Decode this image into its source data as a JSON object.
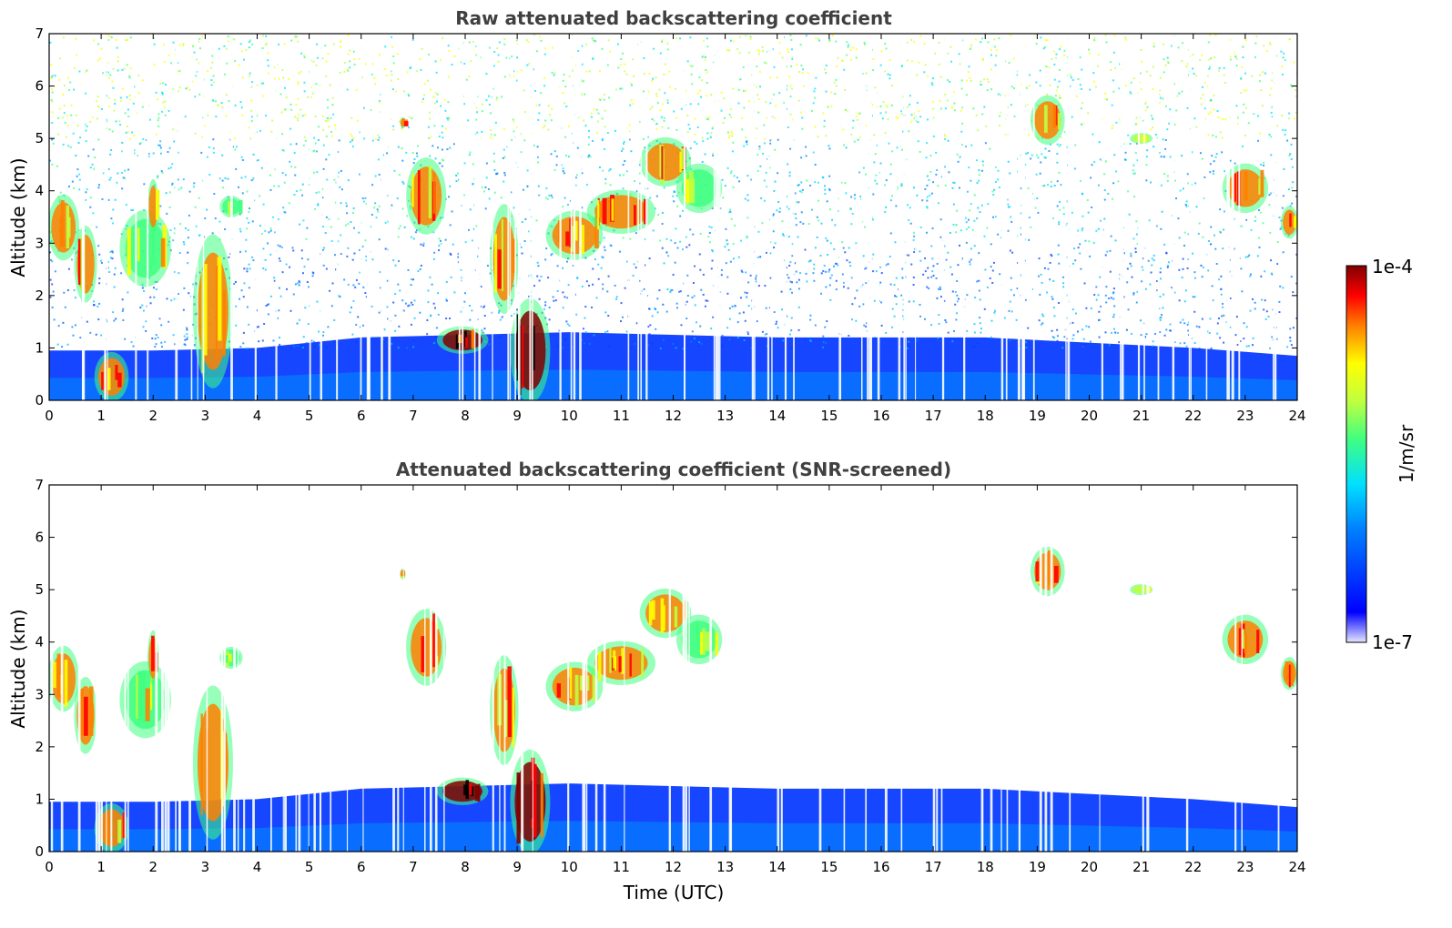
{
  "chart_data": [
    {
      "type": "heatmap",
      "title": "Raw attenuated backscattering coefficient",
      "xlabel": "",
      "ylabel": "Altitude (km)",
      "xlim": [
        0,
        24
      ],
      "ylim": [
        0,
        7
      ],
      "x_ticks": [
        "0",
        "1",
        "2",
        "3",
        "4",
        "5",
        "6",
        "7",
        "8",
        "9",
        "10",
        "11",
        "12",
        "13",
        "14",
        "15",
        "16",
        "17",
        "18",
        "19",
        "20",
        "21",
        "22",
        "23",
        "24"
      ],
      "y_ticks": [
        "0",
        "1",
        "2",
        "3",
        "4",
        "5",
        "6",
        "7"
      ],
      "noise": "everywhere above boundary layer (raw, unscreened)",
      "boundary_layer": [
        {
          "t": 0,
          "top": 0.95
        },
        {
          "t": 2,
          "top": 0.95
        },
        {
          "t": 4,
          "top": 1.0
        },
        {
          "t": 6,
          "top": 1.2
        },
        {
          "t": 10,
          "top": 1.3
        },
        {
          "t": 14,
          "top": 1.2
        },
        {
          "t": 18,
          "top": 1.2
        },
        {
          "t": 22,
          "top": 1.0
        },
        {
          "t": 24,
          "top": 0.85
        }
      ],
      "features": [
        {
          "t0": 0.0,
          "t1": 0.55,
          "z0": 2.7,
          "z1": 3.9,
          "level": "strong"
        },
        {
          "t0": 0.5,
          "t1": 0.9,
          "z0": 1.9,
          "z1": 3.3,
          "level": "strong"
        },
        {
          "t0": 0.9,
          "t1": 1.5,
          "z0": 0.0,
          "z1": 0.9,
          "level": "strong"
        },
        {
          "t0": 1.4,
          "t1": 2.3,
          "z0": 2.2,
          "z1": 3.6,
          "level": "moderate"
        },
        {
          "t0": 1.9,
          "t1": 2.1,
          "z0": 3.2,
          "z1": 4.2,
          "level": "strong"
        },
        {
          "t0": 2.8,
          "t1": 3.5,
          "z0": 0.3,
          "z1": 3.1,
          "level": "strong"
        },
        {
          "t0": 3.3,
          "t1": 3.7,
          "z0": 3.5,
          "z1": 3.9,
          "level": "moderate"
        },
        {
          "t0": 6.75,
          "t1": 6.85,
          "z0": 5.2,
          "z1": 5.4,
          "level": "strong"
        },
        {
          "t0": 6.9,
          "t1": 7.6,
          "z0": 3.2,
          "z1": 4.6,
          "level": "strong"
        },
        {
          "t0": 7.5,
          "t1": 8.4,
          "z0": 0.9,
          "z1": 1.4,
          "level": "very_strong"
        },
        {
          "t0": 8.5,
          "t1": 9.0,
          "z0": 1.7,
          "z1": 3.7,
          "level": "strong"
        },
        {
          "t0": 8.9,
          "t1": 9.6,
          "z0": 0.0,
          "z1": 1.9,
          "level": "very_strong"
        },
        {
          "t0": 9.6,
          "t1": 10.6,
          "z0": 2.7,
          "z1": 3.6,
          "level": "strong"
        },
        {
          "t0": 10.4,
          "t1": 11.6,
          "z0": 3.2,
          "z1": 4.0,
          "level": "strong"
        },
        {
          "t0": 11.4,
          "t1": 12.3,
          "z0": 4.1,
          "z1": 5.0,
          "level": "strong"
        },
        {
          "t0": 12.1,
          "t1": 12.9,
          "z0": 3.6,
          "z1": 4.5,
          "level": "moderate"
        },
        {
          "t0": 18.9,
          "t1": 19.5,
          "z0": 4.9,
          "z1": 5.8,
          "level": "strong"
        },
        {
          "t0": 20.8,
          "t1": 21.2,
          "z0": 4.9,
          "z1": 5.1,
          "level": "weak"
        },
        {
          "t0": 22.6,
          "t1": 23.4,
          "z0": 3.6,
          "z1": 4.5,
          "level": "strong"
        },
        {
          "t0": 23.7,
          "t1": 24.0,
          "z0": 3.1,
          "z1": 3.7,
          "level": "strong"
        }
      ]
    },
    {
      "type": "heatmap",
      "title": "Attenuated backscattering coefficient (SNR-screened)",
      "xlabel": "Time (UTC)",
      "ylabel": "Altitude (km)",
      "xlim": [
        0,
        24
      ],
      "ylim": [
        0,
        7
      ],
      "x_ticks": [
        "0",
        "1",
        "2",
        "3",
        "4",
        "5",
        "6",
        "7",
        "8",
        "9",
        "10",
        "11",
        "12",
        "13",
        "14",
        "15",
        "16",
        "17",
        "18",
        "19",
        "20",
        "21",
        "22",
        "23",
        "24"
      ],
      "y_ticks": [
        "0",
        "1",
        "2",
        "3",
        "4",
        "5",
        "6",
        "7"
      ],
      "noise": "removed by SNR screening",
      "same_features_as_panel": 0
    }
  ],
  "colorbar": {
    "label": "1/m/sr",
    "max_label": "1e-4",
    "min_label": "1e-7",
    "colors": [
      "#e6e6ff",
      "#0000ff",
      "#0080ff",
      "#00e0ff",
      "#40ff80",
      "#c0ff40",
      "#ffff00",
      "#ff8000",
      "#ff0000",
      "#800000"
    ]
  }
}
